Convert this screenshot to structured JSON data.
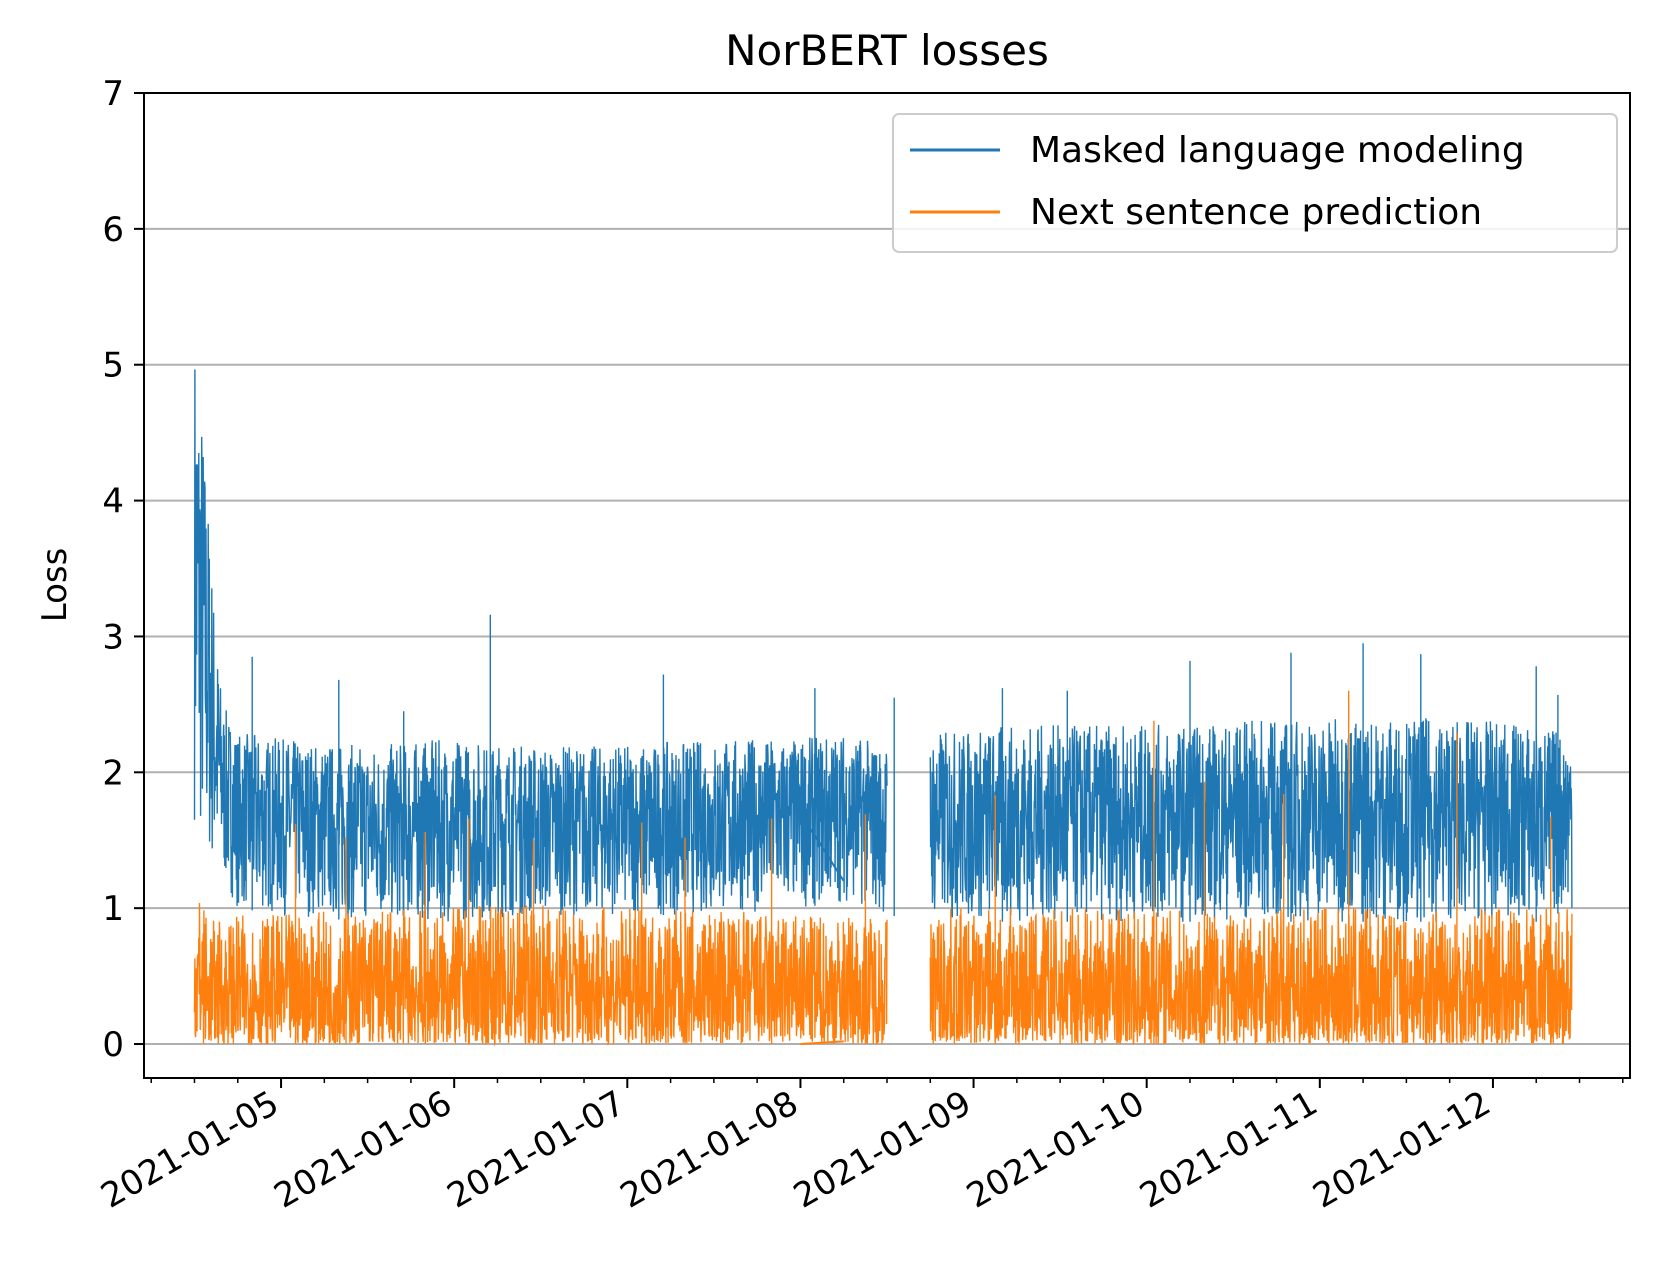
{
  "chart_data": {
    "type": "line",
    "title": "NorBERT losses",
    "xlabel": "",
    "ylabel": "Loss",
    "x_ticks": [
      "2021-01-05",
      "2021-01-06",
      "2021-01-07",
      "2021-01-08",
      "2021-01-09",
      "2021-01-10",
      "2021-01-11",
      "2021-01-12"
    ],
    "xlim": [
      "2021-01-04 05:00",
      "2021-01-12 19:00"
    ],
    "ylim": [
      -0.25,
      7
    ],
    "y_ticks": [
      0,
      1,
      2,
      3,
      4,
      5,
      6,
      7
    ],
    "grid": "y",
    "legend_position": "upper right",
    "segments": [
      {
        "start": "2021-01-04 12:00",
        "end": "2021-01-08 12:00"
      },
      {
        "start": "2021-01-08 18:00",
        "end": "2021-01-12 11:00"
      }
    ],
    "series": [
      {
        "name": "Masked language modeling",
        "color": "#1f77b4",
        "envelope_upper": [
          [
            12,
            5.25
          ],
          [
            13,
            4.7
          ],
          [
            14,
            3.9
          ],
          [
            15,
            3.0
          ],
          [
            16,
            2.5
          ],
          [
            18,
            2.3
          ],
          [
            24,
            2.25
          ],
          [
            36,
            2.2
          ],
          [
            48,
            2.25
          ],
          [
            60,
            2.2
          ],
          [
            72,
            2.2
          ],
          [
            84,
            2.25
          ],
          [
            96,
            2.25
          ],
          [
            102,
            2.3
          ],
          [
            108,
            2.2
          ],
          [
            114,
            2.3
          ],
          [
            126,
            2.35
          ],
          [
            138,
            2.35
          ],
          [
            150,
            2.35
          ],
          [
            162,
            2.4
          ],
          [
            174,
            2.4
          ],
          [
            186,
            2.4
          ],
          [
            198,
            2.35
          ],
          [
            203,
            2.3
          ]
        ],
        "envelope_lower": [
          [
            12,
            1.65
          ],
          [
            13,
            1.4
          ],
          [
            14,
            1.3
          ],
          [
            16,
            1.2
          ],
          [
            18,
            1.0
          ],
          [
            24,
            0.95
          ],
          [
            36,
            0.9
          ],
          [
            48,
            0.9
          ],
          [
            60,
            0.95
          ],
          [
            72,
            0.95
          ],
          [
            84,
            0.95
          ],
          [
            96,
            1.0
          ],
          [
            102,
            1.05
          ],
          [
            108,
            0.95
          ],
          [
            114,
            0.9
          ],
          [
            126,
            0.9
          ],
          [
            138,
            0.9
          ],
          [
            150,
            0.9
          ],
          [
            162,
            0.9
          ],
          [
            174,
            0.9
          ],
          [
            186,
            0.9
          ],
          [
            198,
            0.9
          ],
          [
            203,
            1.0
          ]
        ],
        "spikes": [
          [
            20,
            2.85
          ],
          [
            32,
            2.68
          ],
          [
            41,
            2.45
          ],
          [
            53,
            3.16
          ],
          [
            77,
            2.72
          ],
          [
            98,
            2.62
          ],
          [
            109,
            2.55
          ],
          [
            124,
            2.62
          ],
          [
            133,
            2.6
          ],
          [
            150,
            2.82
          ],
          [
            164,
            2.88
          ],
          [
            174,
            2.95
          ],
          [
            182,
            2.87
          ],
          [
            198,
            2.78
          ],
          [
            201,
            2.57
          ]
        ],
        "bridge": [
          [
            96,
            1.7
          ],
          [
            102,
            1.2
          ]
        ]
      },
      {
        "name": "Next sentence prediction",
        "color": "#ff7f0e",
        "envelope_upper": [
          [
            12,
            1.2
          ],
          [
            13,
            1.1
          ],
          [
            14,
            0.9
          ],
          [
            18,
            0.95
          ],
          [
            24,
            0.95
          ],
          [
            36,
            1.0
          ],
          [
            48,
            1.0
          ],
          [
            60,
            1.05
          ],
          [
            72,
            1.0
          ],
          [
            84,
            1.0
          ],
          [
            96,
            0.95
          ],
          [
            102,
            0.95
          ],
          [
            114,
            1.0
          ],
          [
            126,
            1.0
          ],
          [
            138,
            1.0
          ],
          [
            150,
            1.0
          ],
          [
            162,
            1.0
          ],
          [
            174,
            1.0
          ],
          [
            186,
            1.0
          ],
          [
            198,
            1.0
          ],
          [
            203,
            1.0
          ]
        ],
        "envelope_lower": [
          [
            12,
            0
          ],
          [
            203,
            0
          ]
        ],
        "spikes": [
          [
            26,
            1.62
          ],
          [
            33,
            1.52
          ],
          [
            44,
            1.56
          ],
          [
            50,
            1.66
          ],
          [
            59,
            1.5
          ],
          [
            74,
            1.63
          ],
          [
            80,
            1.52
          ],
          [
            92,
            1.66
          ],
          [
            105,
            1.69
          ],
          [
            123,
            1.83
          ],
          [
            145,
            2.38
          ],
          [
            152,
            1.93
          ],
          [
            163,
            1.84
          ],
          [
            172,
            2.6
          ],
          [
            187,
            2.29
          ],
          [
            200,
            1.67
          ]
        ],
        "bridge": [
          [
            96,
            0.0
          ],
          [
            102,
            0.02
          ]
        ]
      }
    ]
  }
}
